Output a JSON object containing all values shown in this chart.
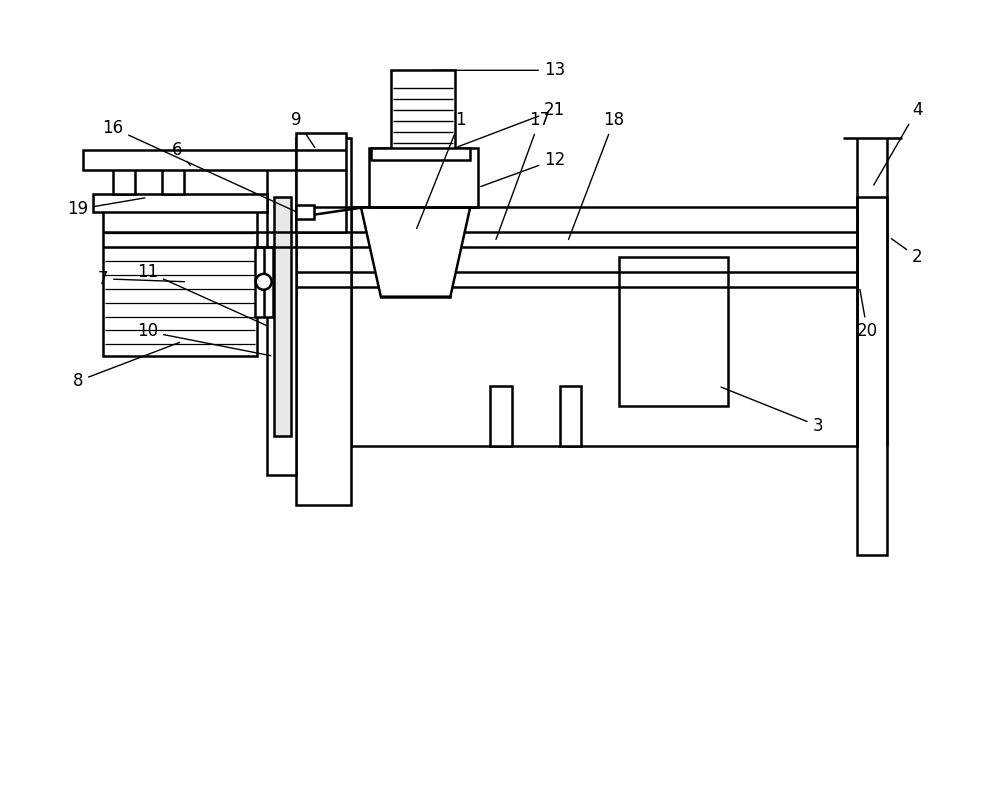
{
  "bg_color": "#ffffff",
  "line_color": "#000000",
  "lw": 1.8,
  "figsize": [
    10.0,
    7.86
  ],
  "dpi": 100
}
